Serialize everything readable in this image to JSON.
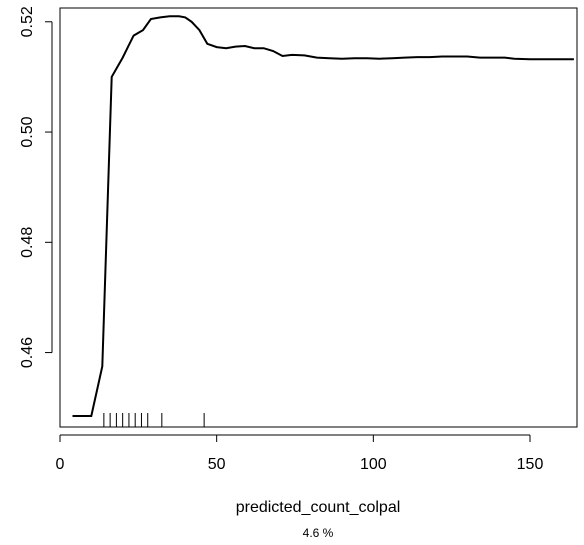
{
  "chart_data": {
    "type": "line",
    "xlabel": "predicted_count_colpal",
    "ylabel": "",
    "subtitle": "4.6 %",
    "xlim": [
      0,
      165
    ],
    "ylim": [
      0.4465,
      0.5225
    ],
    "x_ticks": [
      "0",
      "50",
      "100",
      "150"
    ],
    "y_ticks": [
      "0.46",
      "0.48",
      "0.50",
      "0.52"
    ],
    "x_tick_values": [
      0,
      50,
      100,
      150
    ],
    "y_tick_values": [
      0.46,
      0.48,
      0.5,
      0.52
    ],
    "grid": false,
    "series": [
      {
        "x": [
          4,
          10,
          13.5,
          16.5,
          20,
          23.5,
          26.5,
          29,
          32,
          35,
          38,
          40,
          42,
          44.5,
          47,
          50,
          53,
          56,
          59,
          62,
          65,
          68,
          71,
          74,
          78,
          82,
          86,
          90,
          94,
          98,
          102,
          106,
          110,
          114,
          118,
          122,
          126,
          130,
          134,
          138,
          142,
          145,
          150,
          155,
          160,
          164
        ],
        "y": [
          0.4485,
          0.4485,
          0.4575,
          0.51,
          0.5135,
          0.5175,
          0.5185,
          0.5205,
          0.5208,
          0.521,
          0.521,
          0.5208,
          0.52,
          0.5185,
          0.516,
          0.5154,
          0.5152,
          0.5155,
          0.5156,
          0.5152,
          0.5152,
          0.5147,
          0.5138,
          0.514,
          0.5139,
          0.5135,
          0.5134,
          0.5133,
          0.5134,
          0.5134,
          0.5133,
          0.5134,
          0.5135,
          0.5136,
          0.5136,
          0.5137,
          0.5137,
          0.5137,
          0.5135,
          0.5135,
          0.5135,
          0.5133,
          0.5132,
          0.5132,
          0.5132,
          0.5132
        ]
      }
    ],
    "rug": [
      14,
      16,
      18,
      20,
      22,
      24,
      26,
      28,
      32.5,
      46
    ]
  }
}
